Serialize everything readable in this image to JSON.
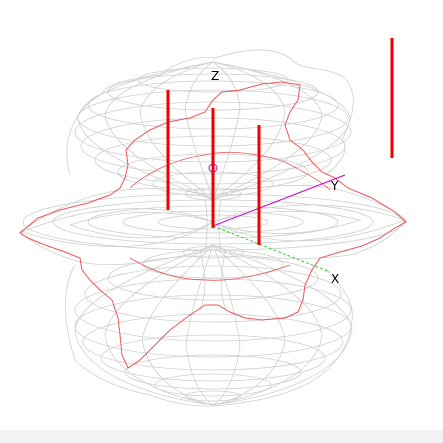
{
  "viewer": {
    "axes": {
      "z_label": "Z",
      "y_label": "Y",
      "x_label": "X"
    },
    "colors": {
      "background": "#ffffff",
      "mesh": "#cfcfcf",
      "pattern_cut": "#ee5555",
      "dipole": "#ee0000",
      "y_axis": "#cc00cc",
      "x_axis": "#33cc33",
      "strip": "#f2f2f2"
    },
    "elements": {
      "dipole_count": 4,
      "mesh": "radiation-pattern-wireframe",
      "cut": "horizontal-pattern-cut"
    }
  }
}
